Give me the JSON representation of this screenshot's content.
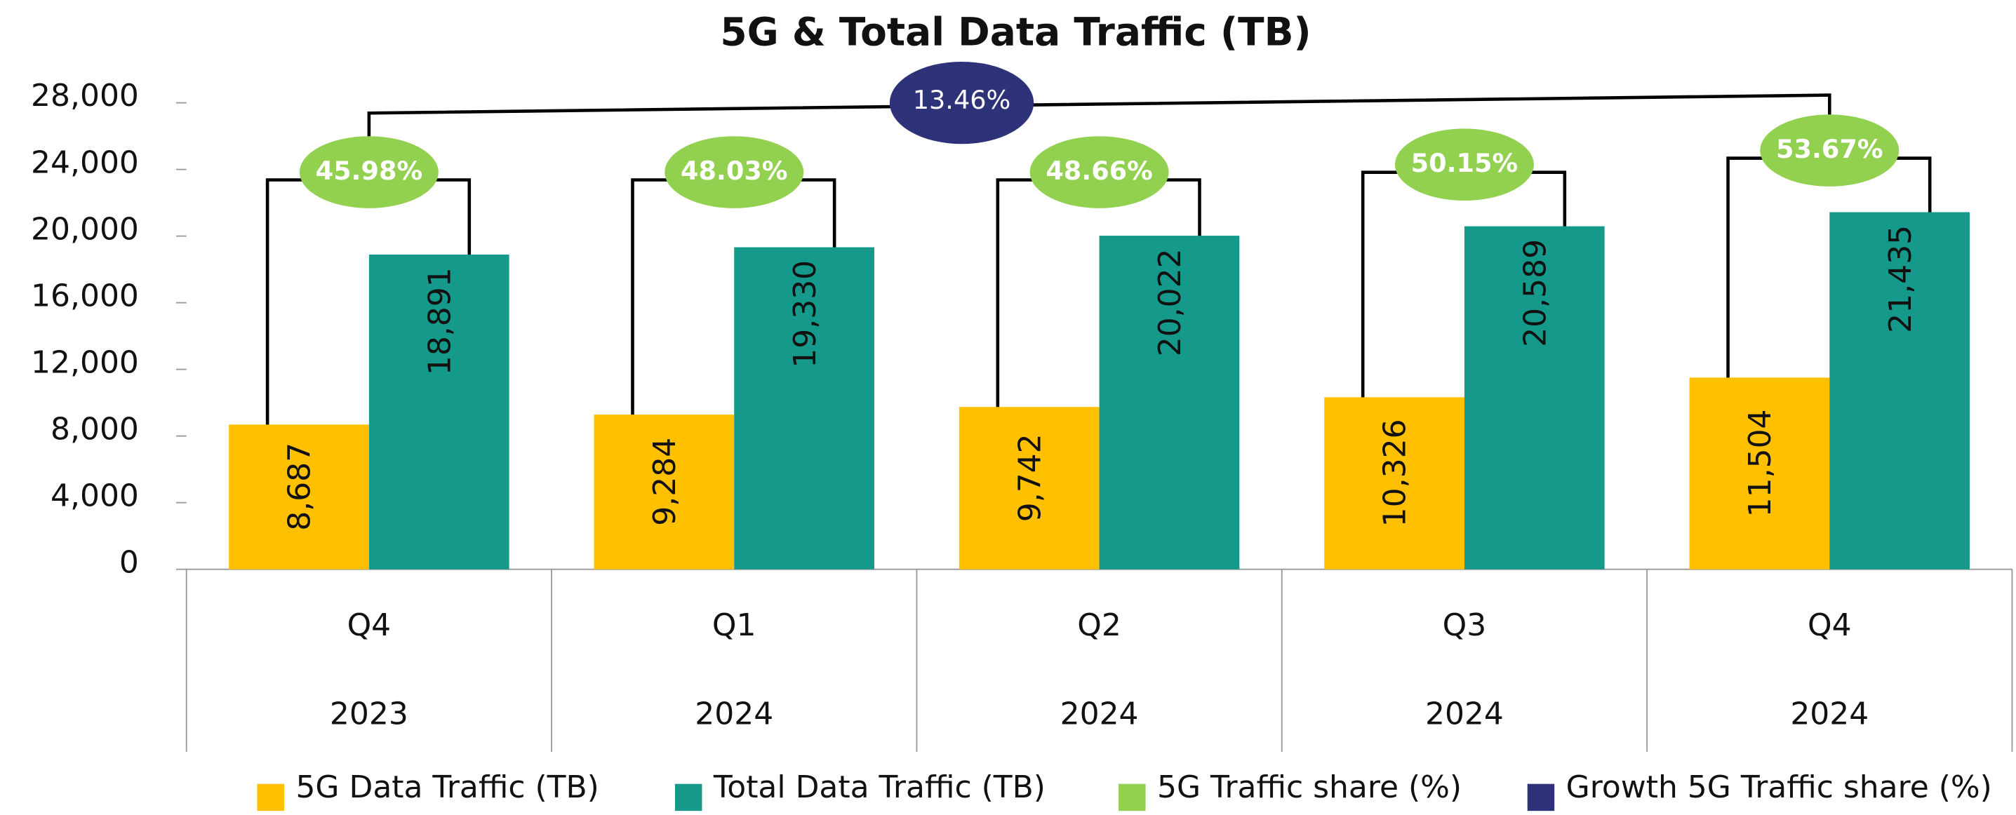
{
  "chart_data": {
    "type": "bar",
    "title": "5G & Total Data Traffic (TB)",
    "categories": [
      "Q4",
      "Q1",
      "Q2",
      "Q3",
      "Q4"
    ],
    "category_years": [
      "2023",
      "2024",
      "2024",
      "2024",
      "2024"
    ],
    "series": [
      {
        "name": "5G Data Traffic (TB)",
        "color": "#ffc000",
        "values": [
          8687,
          9284,
          9742,
          10326,
          11504
        ],
        "value_labels": [
          "8,687",
          "9,284",
          "9,742",
          "10,326",
          "11,504"
        ]
      },
      {
        "name": "Total Data Traffic (TB)",
        "color": "#15998a",
        "values": [
          18891,
          19330,
          20022,
          20589,
          21435
        ],
        "value_labels": [
          "18,891",
          "19,330",
          "20,022",
          "20,589",
          "21,435"
        ]
      }
    ],
    "share": {
      "name": "5G Traffic share (%)",
      "color": "#92d050",
      "values": [
        45.98,
        48.03,
        48.66,
        50.15,
        53.67
      ],
      "value_labels": [
        "45.98%",
        "48.03%",
        "48.66%",
        "50.15%",
        "53.67%"
      ]
    },
    "growth": {
      "name": "Growth 5G Traffic share (%)",
      "color": "#2e3278",
      "value": 13.46,
      "value_label": "13.46%"
    },
    "ylim": [
      0,
      28000
    ],
    "yticks": [
      0,
      {
        "value": 4000,
        "label": "4,000"
      },
      {
        "value": 8000,
        "label": "8,000"
      },
      {
        "value": 12000,
        "label": "12,000"
      },
      {
        "value": 16000,
        "label": "16,000"
      },
      {
        "value": 20000,
        "label": "20,000"
      },
      {
        "value": 24000,
        "label": "24,000"
      },
      {
        "value": 28000,
        "label": "28,000"
      }
    ],
    "grid": false,
    "legend": "bottom"
  }
}
